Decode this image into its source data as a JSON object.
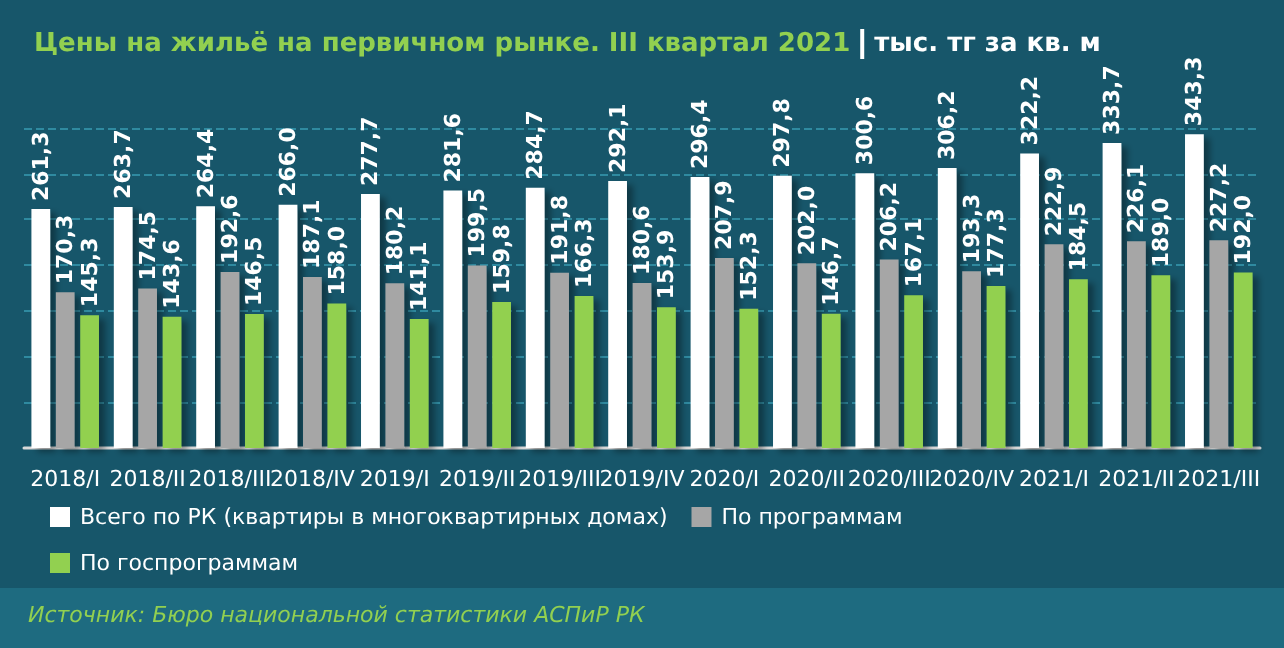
{
  "chart_data": {
    "type": "bar",
    "title": "Цены на жильё на первичном рынке. III квартал 2021",
    "subtitle": "тыс. тг за кв. м",
    "categories": [
      "2018/I",
      "2018/II",
      "2018/III",
      "2018/IV",
      "2019/I",
      "2019/II",
      "2019/III",
      "2019/IV",
      "2020/I",
      "2020/II",
      "2020/III",
      "2020/IV",
      "2021/I",
      "2021/II",
      "2021/III"
    ],
    "series": [
      {
        "name": "Всего по РК (квартиры в многоквартирных домах)",
        "color": "#ffffff",
        "values": [
          261.3,
          263.7,
          264.4,
          266.0,
          277.7,
          281.6,
          284.7,
          292.1,
          296.4,
          297.8,
          300.6,
          306.2,
          322.2,
          333.7,
          343.3
        ],
        "value_labels": [
          "261,3",
          "263,7",
          "264,4",
          "266,0",
          "277,7",
          "281,6",
          "284,7",
          "292,1",
          "296,4",
          "297,8",
          "300,6",
          "306,2",
          "322,2",
          "333,7",
          "343,3"
        ]
      },
      {
        "name": "По программам",
        "color": "#a6a6a6",
        "values": [
          170.3,
          174.5,
          192.6,
          187.1,
          180.2,
          199.5,
          191.8,
          180.6,
          207.9,
          202.0,
          206.2,
          193.3,
          222.9,
          226.1,
          227.2
        ],
        "value_labels": [
          "170,3",
          "174,5",
          "192,6",
          "187,1",
          "180,2",
          "199,5",
          "191,8",
          "180,6",
          "207,9",
          "202,0",
          "206,2",
          "193,3",
          "222,9",
          "226,1",
          "227,2"
        ]
      },
      {
        "name": "По госпрограммам",
        "color": "#92d050",
        "values": [
          145.3,
          143.6,
          146.5,
          158.0,
          141.1,
          159.8,
          166.3,
          153.9,
          152.3,
          146.7,
          167.1,
          177.3,
          184.5,
          189.0,
          192.0
        ],
        "value_labels": [
          "145,3",
          "143,6",
          "146,5",
          "158,0",
          "141,1",
          "159,8",
          "166,3",
          "153,9",
          "152,3",
          "146,7",
          "167,1",
          "177,3",
          "184,5",
          "189,0",
          "192,0"
        ]
      }
    ],
    "ylim": [
      0,
      350
    ],
    "yticks": [
      {
        "value": 50,
        "label": null
      },
      {
        "value": 100,
        "label": null
      },
      {
        "value": 150,
        "label": null
      },
      {
        "value": 200,
        "label": null
      },
      {
        "value": 250,
        "label": null
      },
      {
        "value": 300,
        "label": null
      },
      {
        "value": 350,
        "label": null
      }
    ],
    "tick_labels": "x",
    "grid": "y",
    "legend": "bottom",
    "line_style": "dashed",
    "annotations": [
      "Источник: Бюро национальной статистики АСПиР РК"
    ]
  }
}
